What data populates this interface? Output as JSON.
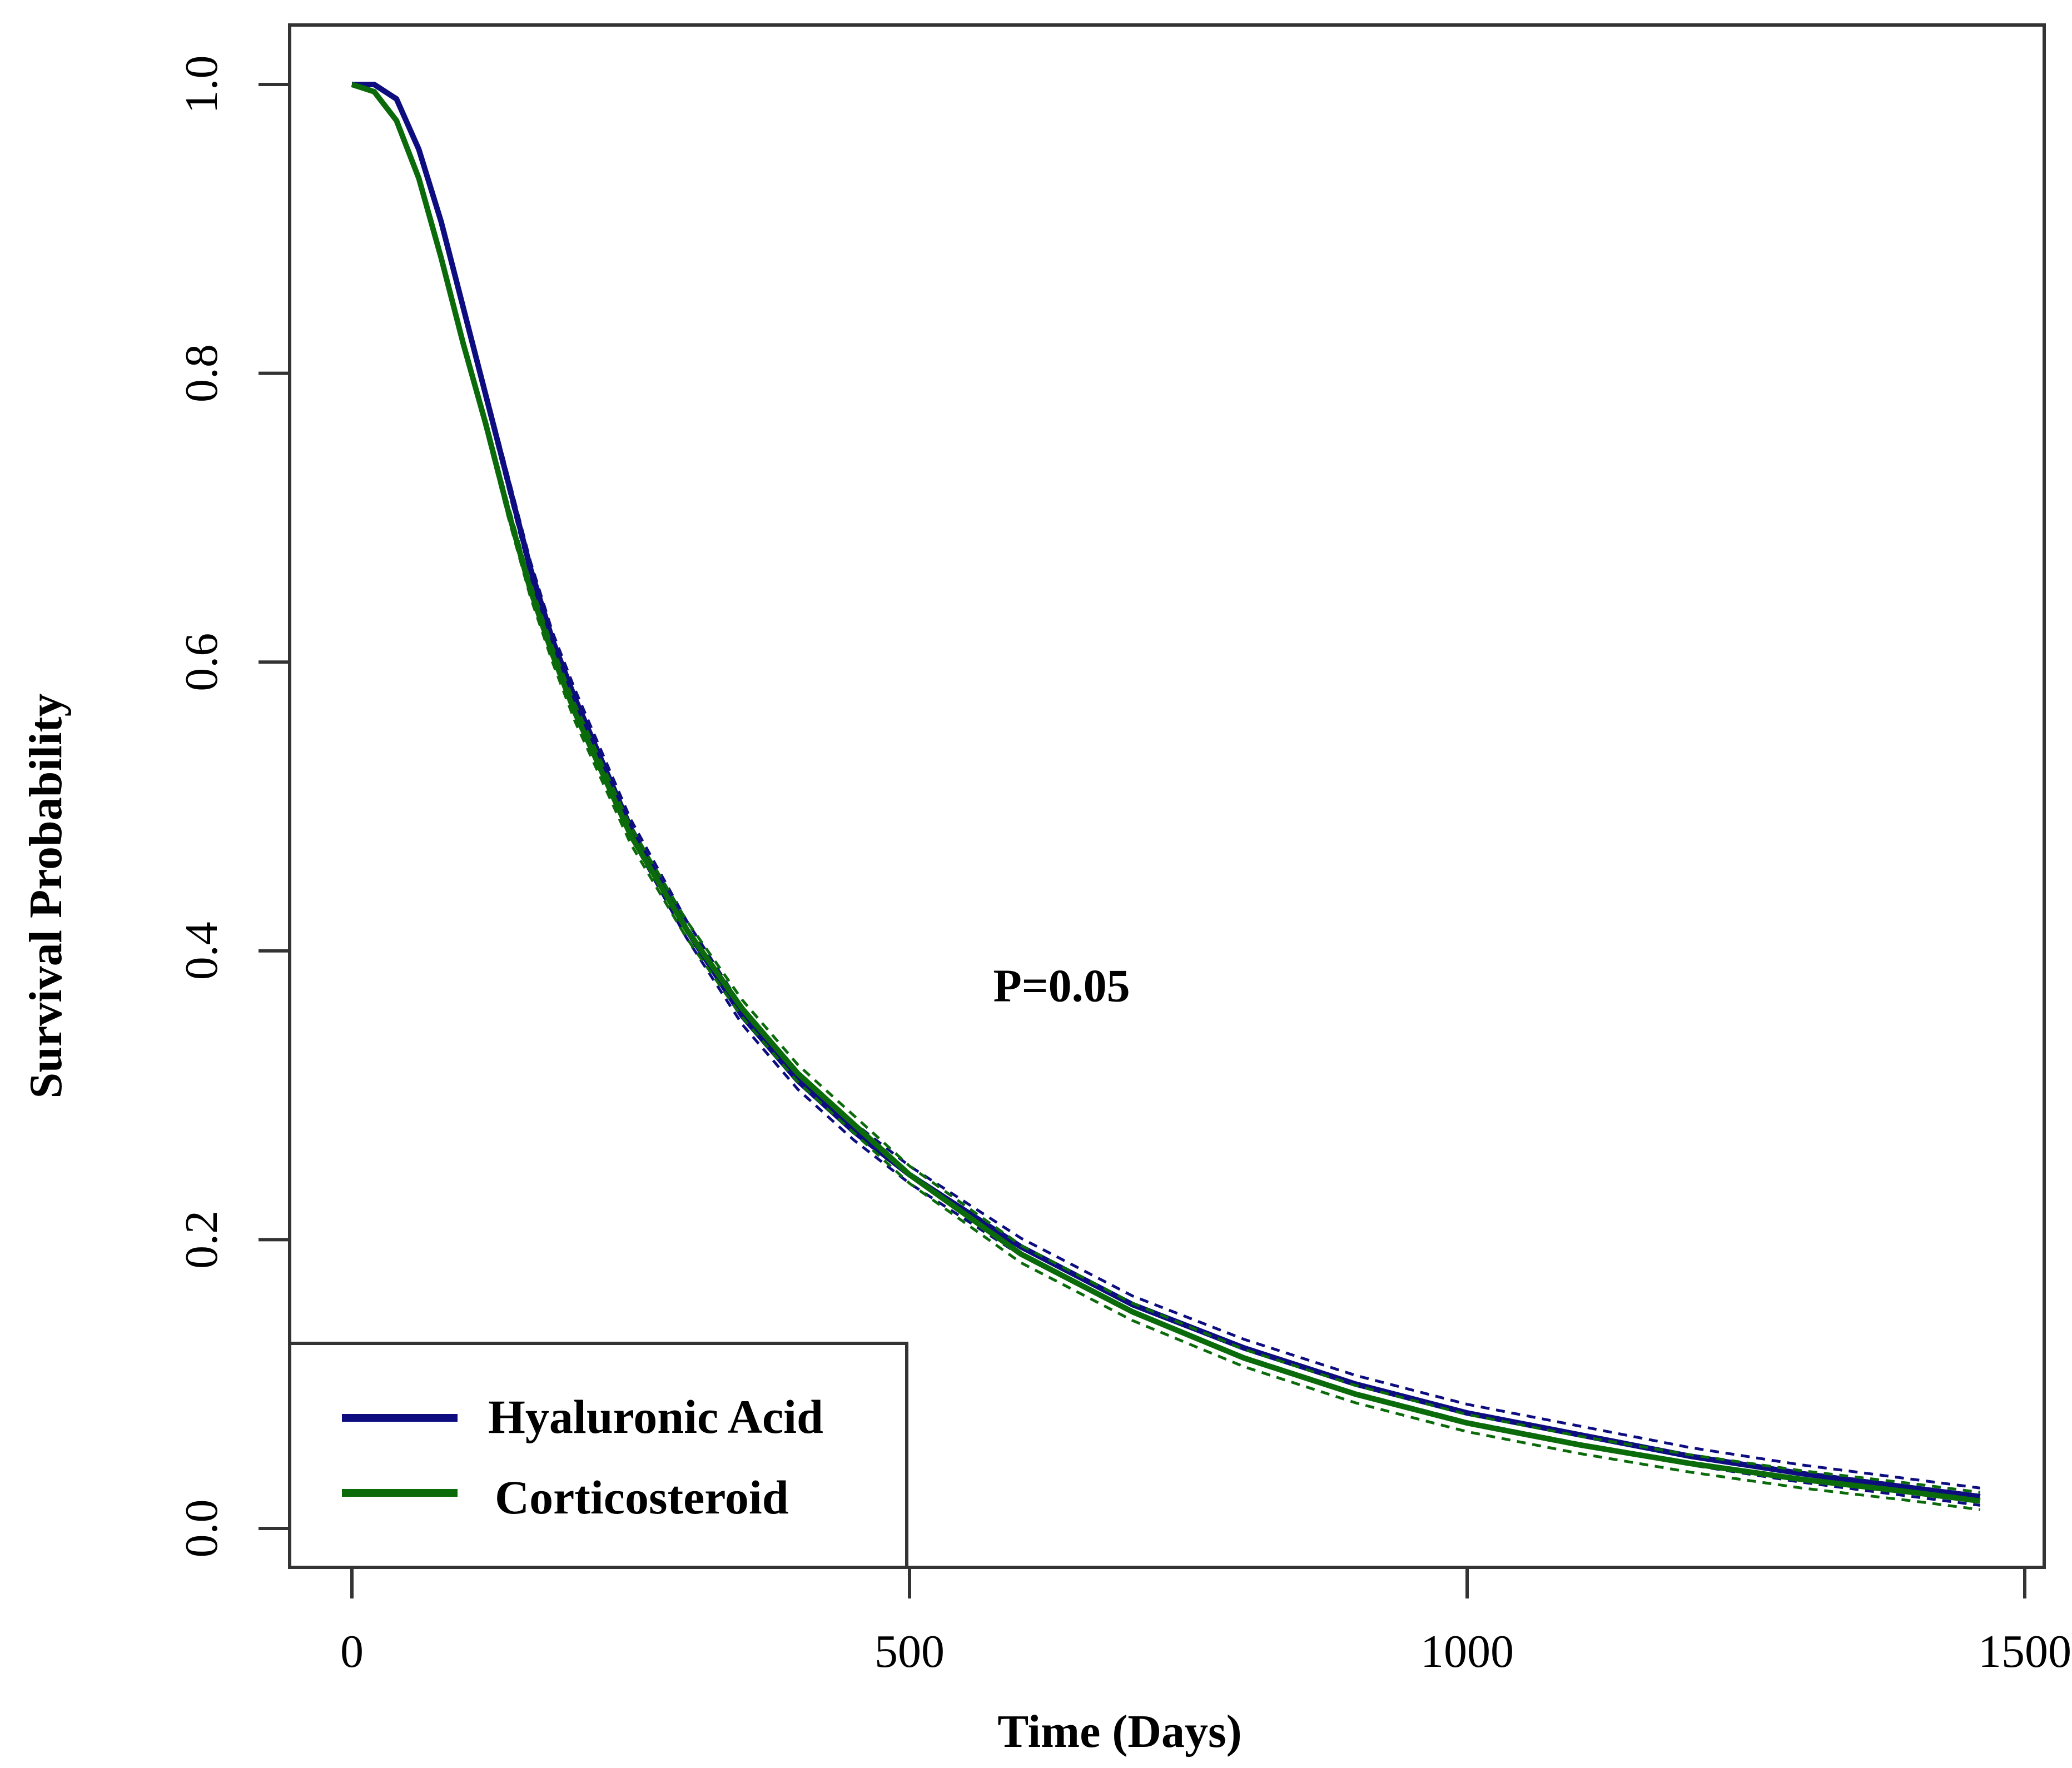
{
  "chart_data": {
    "type": "line",
    "title": "",
    "xlabel": "Time (Days)",
    "ylabel": "Survival Probability",
    "xlim": [
      0,
      1500
    ],
    "ylim": [
      0,
      1
    ],
    "xticks": [
      0,
      500,
      1000,
      1500
    ],
    "xtick_labels": [
      "0",
      "500",
      "1000",
      "1500"
    ],
    "yticks": [
      0,
      0.2,
      0.4,
      0.6,
      0.8,
      1.0
    ],
    "ytick_labels": [
      "0.0",
      "0.2",
      "0.4",
      "0.6",
      "0.8",
      "1.0"
    ],
    "grid": false,
    "legend_position": "bottom-left",
    "annotation": {
      "text": "P=0.05",
      "x": 575,
      "y": 0.365
    },
    "series": [
      {
        "name": "Hyaluronic Acid",
        "color": "#0d0d80",
        "x": [
          0,
          20,
          40,
          60,
          80,
          100,
          120,
          140,
          160,
          180,
          200,
          250,
          300,
          350,
          400,
          450,
          500,
          600,
          700,
          800,
          900,
          1000,
          1100,
          1200,
          1300,
          1400,
          1460
        ],
        "y": [
          1.0,
          1.0,
          0.99,
          0.955,
          0.905,
          0.845,
          0.785,
          0.725,
          0.665,
          0.615,
          0.575,
          0.485,
          0.415,
          0.355,
          0.31,
          0.275,
          0.245,
          0.195,
          0.155,
          0.125,
          0.1,
          0.08,
          0.065,
          0.05,
          0.038,
          0.028,
          0.022
        ]
      },
      {
        "name": "Corticosteroid",
        "color": "#0b6b0b",
        "x": [
          0,
          20,
          40,
          60,
          80,
          100,
          120,
          140,
          160,
          180,
          200,
          250,
          300,
          350,
          400,
          450,
          500,
          600,
          700,
          800,
          900,
          1000,
          1100,
          1200,
          1300,
          1400,
          1460
        ],
        "y": [
          1.0,
          0.995,
          0.975,
          0.935,
          0.88,
          0.82,
          0.765,
          0.705,
          0.65,
          0.605,
          0.565,
          0.48,
          0.415,
          0.36,
          0.315,
          0.28,
          0.245,
          0.19,
          0.15,
          0.118,
          0.093,
          0.073,
          0.058,
          0.045,
          0.034,
          0.025,
          0.019
        ]
      }
    ]
  }
}
